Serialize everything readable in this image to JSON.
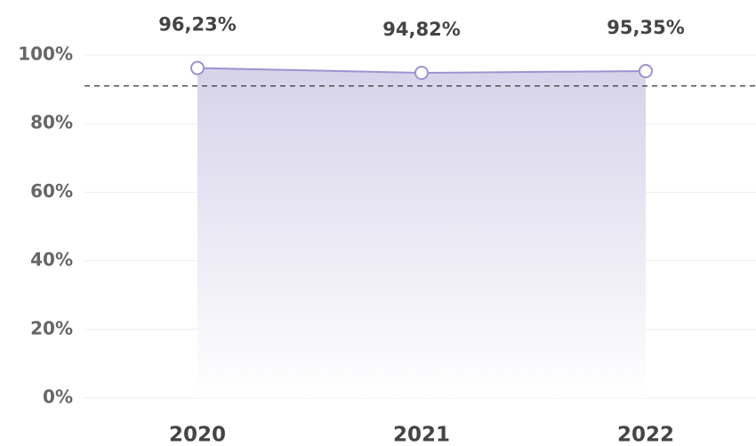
{
  "chart_data": {
    "type": "area",
    "categories": [
      "2020",
      "2021",
      "2022"
    ],
    "values": [
      96.23,
      94.82,
      95.35
    ],
    "value_labels": [
      "96,23%",
      "94,82%",
      "95,35%"
    ],
    "color": "#9b94d0",
    "ylim": [
      0,
      100
    ],
    "yticks": [
      {
        "value": 0,
        "label": "0%"
      },
      {
        "value": 20,
        "label": "20%"
      },
      {
        "value": 40,
        "label": "40%"
      },
      {
        "value": 60,
        "label": "60%"
      },
      {
        "value": 80,
        "label": "80%"
      },
      {
        "value": 100,
        "label": "100%"
      }
    ],
    "grid": true,
    "reference_line": 91
  }
}
